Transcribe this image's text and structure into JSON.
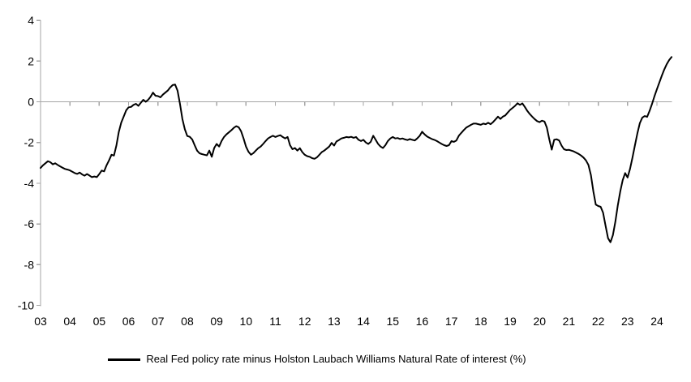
{
  "chart_data": {
    "type": "line",
    "title": "",
    "xlabel": "",
    "ylabel": "",
    "legend_label": "Real Fed policy rate minus Holston Laubach Williams Natural Rate of interest (%)",
    "legend_position": "bottom-center",
    "gridlines": "zero-line-only",
    "ylim": [
      -10,
      4
    ],
    "y_tick_values": [
      4,
      2,
      0,
      -2,
      -4,
      -6,
      -8,
      -10
    ],
    "x_tick_labels": [
      "03",
      "04",
      "05",
      "06",
      "07",
      "08",
      "09",
      "10",
      "11",
      "12",
      "13",
      "14",
      "15",
      "16",
      "17",
      "18",
      "19",
      "20",
      "21",
      "22",
      "23",
      "24"
    ],
    "x_range": {
      "start": "2003-01",
      "end": "2024-07",
      "frequency": "monthly"
    },
    "colors": {
      "series": "#000000",
      "axis": "#a6a6a6",
      "text": "#000000",
      "background": "#ffffff"
    },
    "series": [
      {
        "name": "Real Fed policy rate minus Holston Laubach Williams Natural Rate of interest (%)",
        "values": [
          -3.25,
          -3.12,
          -3.02,
          -2.92,
          -2.97,
          -3.07,
          -3.02,
          -3.1,
          -3.17,
          -3.24,
          -3.3,
          -3.33,
          -3.37,
          -3.44,
          -3.5,
          -3.54,
          -3.48,
          -3.57,
          -3.63,
          -3.55,
          -3.62,
          -3.7,
          -3.67,
          -3.7,
          -3.55,
          -3.38,
          -3.42,
          -3.12,
          -2.88,
          -2.6,
          -2.64,
          -2.15,
          -1.48,
          -1.02,
          -0.73,
          -0.42,
          -0.27,
          -0.25,
          -0.15,
          -0.1,
          -0.2,
          -0.05,
          0.1,
          0.0,
          0.1,
          0.25,
          0.45,
          0.3,
          0.28,
          0.22,
          0.35,
          0.45,
          0.55,
          0.7,
          0.82,
          0.85,
          0.55,
          -0.1,
          -0.85,
          -1.35,
          -1.68,
          -1.72,
          -1.85,
          -2.13,
          -2.4,
          -2.53,
          -2.57,
          -2.6,
          -2.63,
          -2.4,
          -2.7,
          -2.27,
          -2.07,
          -2.2,
          -1.93,
          -1.73,
          -1.6,
          -1.5,
          -1.4,
          -1.28,
          -1.2,
          -1.25,
          -1.45,
          -1.8,
          -2.2,
          -2.45,
          -2.6,
          -2.52,
          -2.4,
          -2.28,
          -2.2,
          -2.07,
          -1.93,
          -1.8,
          -1.73,
          -1.67,
          -1.73,
          -1.68,
          -1.64,
          -1.73,
          -1.8,
          -1.73,
          -2.13,
          -2.33,
          -2.27,
          -2.4,
          -2.28,
          -2.47,
          -2.6,
          -2.67,
          -2.7,
          -2.77,
          -2.8,
          -2.73,
          -2.6,
          -2.47,
          -2.4,
          -2.3,
          -2.2,
          -2.02,
          -2.15,
          -1.95,
          -1.88,
          -1.8,
          -1.77,
          -1.73,
          -1.75,
          -1.72,
          -1.77,
          -1.73,
          -1.87,
          -1.93,
          -1.87,
          -2.0,
          -2.07,
          -1.97,
          -1.67,
          -1.87,
          -2.07,
          -2.2,
          -2.27,
          -2.13,
          -1.93,
          -1.8,
          -1.73,
          -1.8,
          -1.78,
          -1.83,
          -1.8,
          -1.85,
          -1.88,
          -1.83,
          -1.87,
          -1.9,
          -1.8,
          -1.67,
          -1.47,
          -1.6,
          -1.7,
          -1.77,
          -1.83,
          -1.87,
          -1.93,
          -2.0,
          -2.07,
          -2.13,
          -2.17,
          -2.13,
          -1.93,
          -1.97,
          -1.9,
          -1.67,
          -1.53,
          -1.4,
          -1.27,
          -1.2,
          -1.13,
          -1.07,
          -1.07,
          -1.1,
          -1.13,
          -1.07,
          -1.1,
          -1.03,
          -1.1,
          -1.0,
          -0.87,
          -0.73,
          -0.84,
          -0.73,
          -0.67,
          -0.53,
          -0.4,
          -0.3,
          -0.2,
          -0.07,
          -0.15,
          -0.08,
          -0.25,
          -0.45,
          -0.6,
          -0.73,
          -0.85,
          -0.95,
          -1.0,
          -0.93,
          -0.97,
          -1.27,
          -1.85,
          -2.35,
          -1.87,
          -1.84,
          -1.9,
          -2.15,
          -2.33,
          -2.37,
          -2.36,
          -2.4,
          -2.44,
          -2.5,
          -2.56,
          -2.64,
          -2.74,
          -2.88,
          -3.1,
          -3.6,
          -4.4,
          -5.05,
          -5.12,
          -5.16,
          -5.45,
          -6.1,
          -6.7,
          -6.9,
          -6.55,
          -5.9,
          -5.1,
          -4.4,
          -3.85,
          -3.5,
          -3.72,
          -3.3,
          -2.75,
          -2.15,
          -1.55,
          -1.05,
          -0.78,
          -0.7,
          -0.74,
          -0.45,
          -0.1,
          0.28,
          0.62,
          0.95,
          1.28,
          1.58,
          1.85,
          2.05,
          2.2
        ]
      }
    ]
  }
}
